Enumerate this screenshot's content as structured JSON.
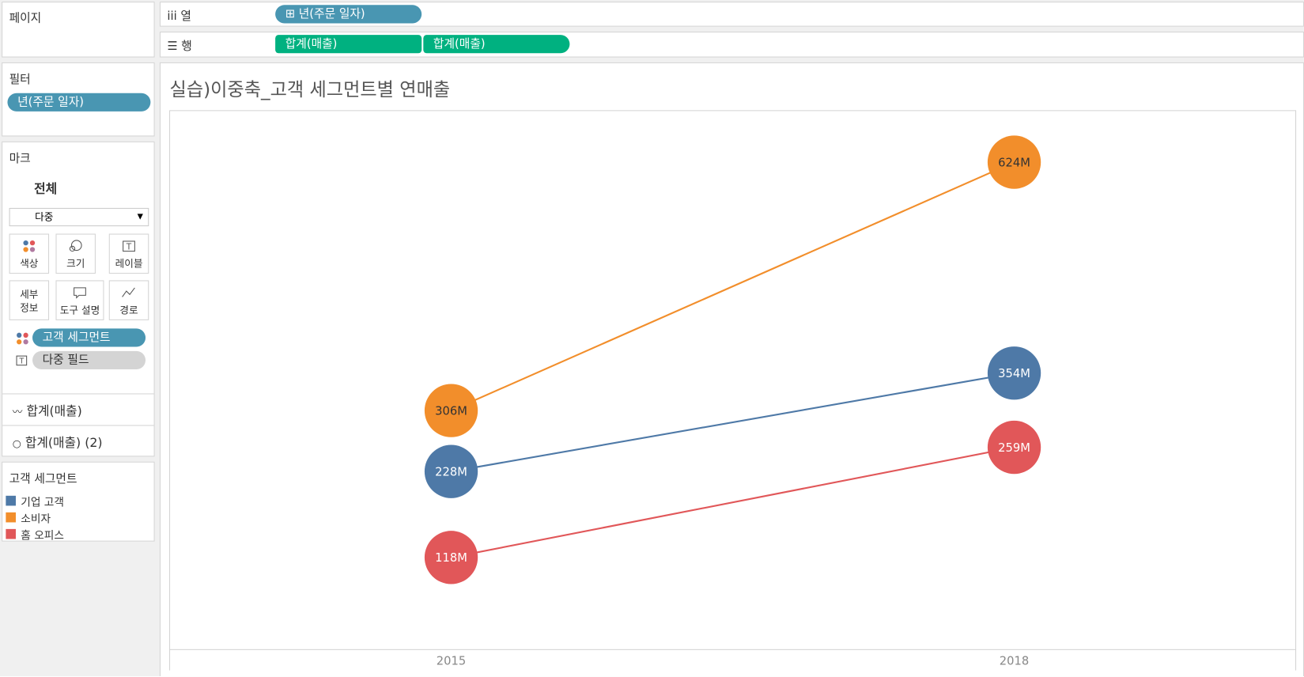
{
  "shelves": {
    "pages": "페이지",
    "columns": {
      "label": "열",
      "pills": [
        "년(주문 일자)"
      ]
    },
    "rows": {
      "label": "행",
      "pills": [
        "합계(매출)",
        "합계(매출)"
      ]
    }
  },
  "filters": {
    "title": "필터",
    "pills": [
      "년(주문 일자)"
    ]
  },
  "marks": {
    "title": "마크",
    "tab": "전체",
    "type": "다중",
    "buttons": [
      "색상",
      "크기",
      "레이블",
      "세부\n정보",
      "도구 설명",
      "경로"
    ],
    "fields": [
      "고객 세그먼트",
      "다중 필드"
    ],
    "measures": [
      "합계(매출)",
      "합계(매출) (2)"
    ]
  },
  "legend": {
    "title": "고객 세그먼트"
  },
  "chart_data": {
    "type": "line",
    "title": "실습)이중축_고객 세그먼트별 연매출",
    "categories": [
      "2015",
      "2018"
    ],
    "ylim": [
      0,
      690
    ],
    "series": [
      {
        "name": "기업 고객",
        "color": "#4e79a7",
        "label_color": "#ffffff",
        "values": [
          228,
          354
        ],
        "value_labels": [
          "228M",
          "354M"
        ]
      },
      {
        "name": "소비자",
        "color": "#f28e2b",
        "label_color": "#333333",
        "values": [
          306,
          624
        ],
        "value_labels": [
          "306M",
          "624M"
        ]
      },
      {
        "name": "홈 오피스",
        "color": "#e15759",
        "label_color": "#ffffff",
        "values": [
          118,
          259
        ],
        "value_labels": [
          "118M",
          "259M"
        ]
      }
    ]
  }
}
